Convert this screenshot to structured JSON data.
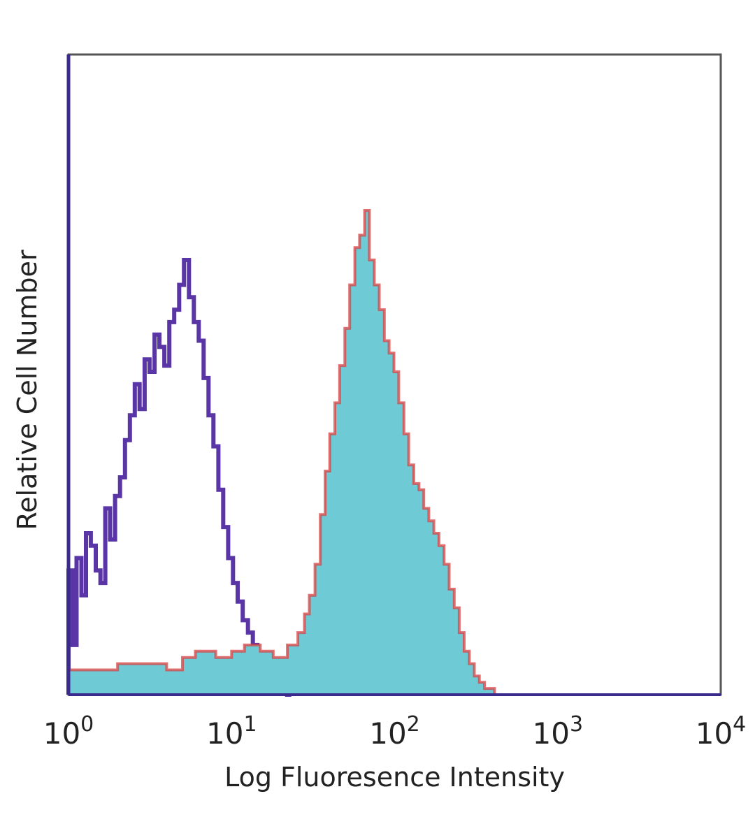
{
  "chart_data": {
    "type": "area",
    "xlabel": "Log Fluoresence Intensity",
    "ylabel": "Relative Cell Number",
    "x_scale": "log",
    "xlim": [
      1,
      10000
    ],
    "ylim": [
      0,
      100
    ],
    "x_ticks": [
      {
        "base": "10",
        "exp": "0",
        "value": 1
      },
      {
        "base": "10",
        "exp": "1",
        "value": 10
      },
      {
        "base": "10",
        "exp": "2",
        "value": 100
      },
      {
        "base": "10",
        "exp": "3",
        "value": 1000
      },
      {
        "base": "10",
        "exp": "4",
        "value": 10000
      }
    ],
    "grid": false,
    "legend": "none",
    "series": [
      {
        "style": "outline",
        "color": "#5a35a6",
        "x": [
          1.0,
          1.06,
          1.12,
          1.2,
          1.28,
          1.37,
          1.47,
          1.57,
          1.68,
          1.8,
          1.93,
          2.07,
          2.22,
          2.38,
          2.55,
          2.73,
          2.93,
          3.14,
          3.37,
          3.61,
          3.87,
          4.15,
          4.45,
          4.77,
          5.11,
          5.48,
          5.87,
          6.29,
          6.74,
          7.22,
          7.74,
          8.3,
          8.89,
          9.53,
          10.2,
          10.9,
          11.7,
          12.6,
          13.5,
          14.4,
          15.5,
          16.6,
          17.8,
          19.0,
          20.4,
          21.9
        ],
        "y": [
          20,
          8,
          22,
          16,
          26,
          24,
          20,
          18,
          30,
          25,
          32,
          35,
          41,
          45,
          50,
          46,
          54,
          52,
          58,
          56,
          53,
          60,
          62,
          66,
          70,
          64,
          60,
          57,
          51,
          45,
          40,
          33,
          27,
          22,
          18,
          15,
          12,
          10,
          8,
          6,
          5,
          4,
          3,
          2,
          1,
          0
        ]
      },
      {
        "style": "filled",
        "color": "#6ecbd6",
        "outline_color": "#d94040",
        "x": [
          1.0,
          2.0,
          3.0,
          4.0,
          5.0,
          6.0,
          8.0,
          10.0,
          12.0,
          15.0,
          18.0,
          22.0,
          25.5,
          28.0,
          30.0,
          32.5,
          35.0,
          37.5,
          40.0,
          43.0,
          46.0,
          49.5,
          53.0,
          57.0,
          61.0,
          65.5,
          70.0,
          75.0,
          80.5,
          86.5,
          92.5,
          99.0,
          106.0,
          114.0,
          122.0,
          131.0,
          141.0,
          151.0,
          162.0,
          174.0,
          187.0,
          201.0,
          216.0,
          232.0,
          249.0,
          267.0,
          287.0,
          308.0,
          331.0,
          356.0,
          382.0,
          410.0,
          440.0
        ],
        "y": [
          4,
          5,
          5,
          4,
          6,
          7,
          6,
          7,
          8,
          7,
          6,
          8,
          10,
          13,
          16,
          21,
          29,
          36,
          42,
          47,
          53,
          59,
          66,
          72,
          74,
          78,
          70,
          66,
          62,
          57,
          55,
          52,
          47,
          42,
          37,
          34,
          33,
          30,
          28,
          26,
          24,
          21,
          17,
          14,
          10,
          7,
          5,
          3,
          2,
          1,
          1,
          0,
          0
        ]
      }
    ]
  }
}
